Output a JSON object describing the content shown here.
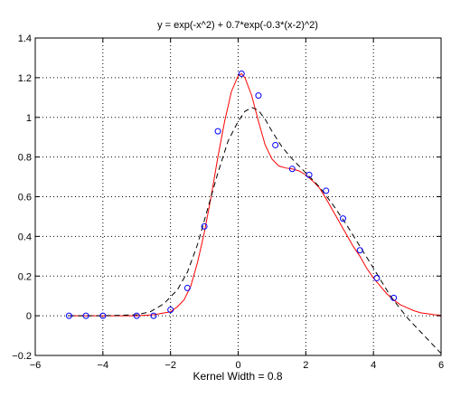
{
  "chart_data": {
    "type": "line",
    "title": "y = exp(-x^2) + 0.7*exp(-0.3*(x-2)^2)",
    "xlabel": "Kernel Width = 0.8",
    "ylabel": "",
    "xlim": [
      -6,
      6
    ],
    "ylim": [
      -0.2,
      1.4
    ],
    "xticks": [
      -6,
      -4,
      -2,
      0,
      2,
      4,
      6
    ],
    "yticks": [
      -0.2,
      0,
      0.2,
      0.4,
      0.6,
      0.8,
      1,
      1.2,
      1.4
    ],
    "xtick_labels": [
      "−6",
      "−4",
      "−2",
      "0",
      "2",
      "4",
      "6"
    ],
    "ytick_labels": [
      "−0.2",
      "0",
      "0.2",
      "0.4",
      "0.6",
      "0.8",
      "1",
      "1.2",
      "1.4"
    ],
    "grid": true,
    "series": [
      {
        "style": "solid",
        "color": "#ff0000",
        "x": [
          -5.0,
          -4.0,
          -3.0,
          -2.5,
          -2.0,
          -1.8,
          -1.6,
          -1.4,
          -1.2,
          -1.0,
          -0.8,
          -0.6,
          -0.4,
          -0.2,
          0.0,
          0.1,
          0.2,
          0.4,
          0.6,
          0.8,
          1.0,
          1.2,
          1.4,
          1.6,
          1.8,
          2.0,
          2.2,
          2.4,
          2.6,
          2.8,
          3.0,
          3.2,
          3.4,
          3.6,
          3.8,
          4.0,
          4.2,
          4.4,
          4.6,
          4.8,
          5.0,
          5.2,
          5.4,
          5.6,
          5.8,
          6.0
        ],
        "y": [
          0.0,
          0.0,
          0.0,
          0.005,
          0.02,
          0.045,
          0.08,
          0.15,
          0.27,
          0.42,
          0.6,
          0.8,
          0.98,
          1.13,
          1.21,
          1.22,
          1.2,
          1.11,
          0.98,
          0.86,
          0.79,
          0.755,
          0.745,
          0.74,
          0.73,
          0.71,
          0.68,
          0.645,
          0.59,
          0.53,
          0.47,
          0.41,
          0.35,
          0.3,
          0.24,
          0.19,
          0.15,
          0.11,
          0.08,
          0.055,
          0.04,
          0.025,
          0.015,
          0.01,
          0.005,
          0.003
        ]
      },
      {
        "style": "dashed",
        "color": "#000000",
        "x": [
          -5.0,
          -4.0,
          -3.0,
          -2.6,
          -2.2,
          -1.8,
          -1.5,
          -1.2,
          -0.9,
          -0.6,
          -0.3,
          0.0,
          0.2,
          0.4,
          0.6,
          0.8,
          1.0,
          1.3,
          1.6,
          2.0,
          2.4,
          2.8,
          3.2,
          3.6,
          4.0,
          4.5,
          5.0,
          5.5,
          6.0
        ],
        "y": [
          0.0,
          0.0,
          0.005,
          0.02,
          0.06,
          0.13,
          0.22,
          0.36,
          0.54,
          0.72,
          0.88,
          0.98,
          1.03,
          1.05,
          1.035,
          0.99,
          0.93,
          0.85,
          0.79,
          0.72,
          0.65,
          0.56,
          0.46,
          0.35,
          0.24,
          0.1,
          -0.01,
          -0.1,
          -0.19
        ]
      },
      {
        "style": "markers",
        "color": "#0000ff",
        "x": [
          -5.0,
          -4.5,
          -4.0,
          -3.0,
          -2.5,
          -2.0,
          -1.5,
          -1.0,
          -0.6,
          0.1,
          0.6,
          1.1,
          1.6,
          2.1,
          2.6,
          3.1,
          3.6,
          4.1,
          4.6
        ],
        "y": [
          0.0,
          0.0,
          0.0,
          0.0,
          0.0,
          0.03,
          0.14,
          0.45,
          0.93,
          1.22,
          1.11,
          0.86,
          0.74,
          0.71,
          0.63,
          0.49,
          0.33,
          0.19,
          0.09
        ]
      }
    ]
  }
}
